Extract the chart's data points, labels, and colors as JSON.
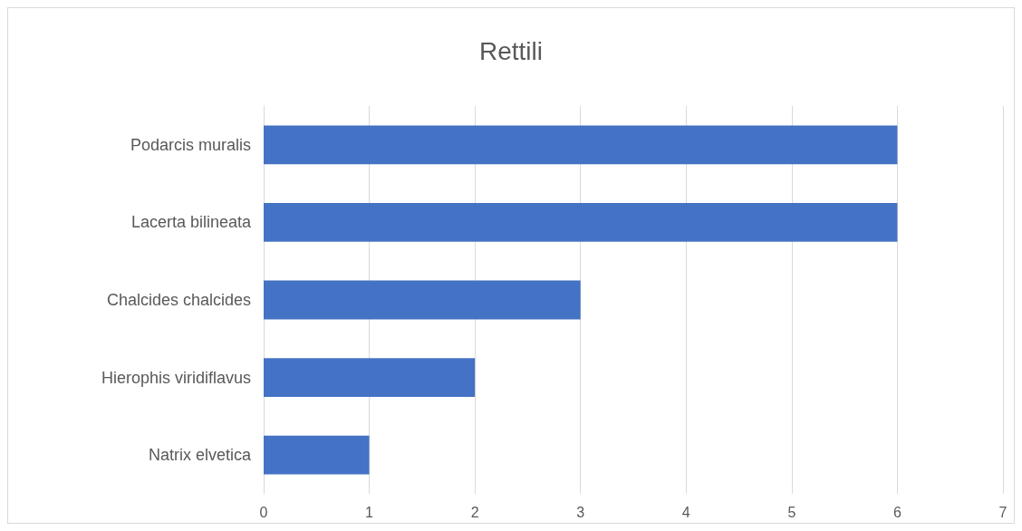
{
  "chart_data": {
    "type": "bar",
    "title": "Rettili",
    "orientation": "horizontal",
    "categories": [
      "Podarcis muralis",
      "Lacerta bilineata",
      "Chalcides chalcides",
      "Hierophis viridiflavus",
      "Natrix elvetica"
    ],
    "values": [
      6,
      6,
      3,
      2,
      1
    ],
    "color": "#4472c4",
    "xlim": [
      0,
      7
    ],
    "xticks": [
      0,
      1,
      2,
      3,
      4,
      5,
      6,
      7
    ],
    "grid": "x"
  }
}
